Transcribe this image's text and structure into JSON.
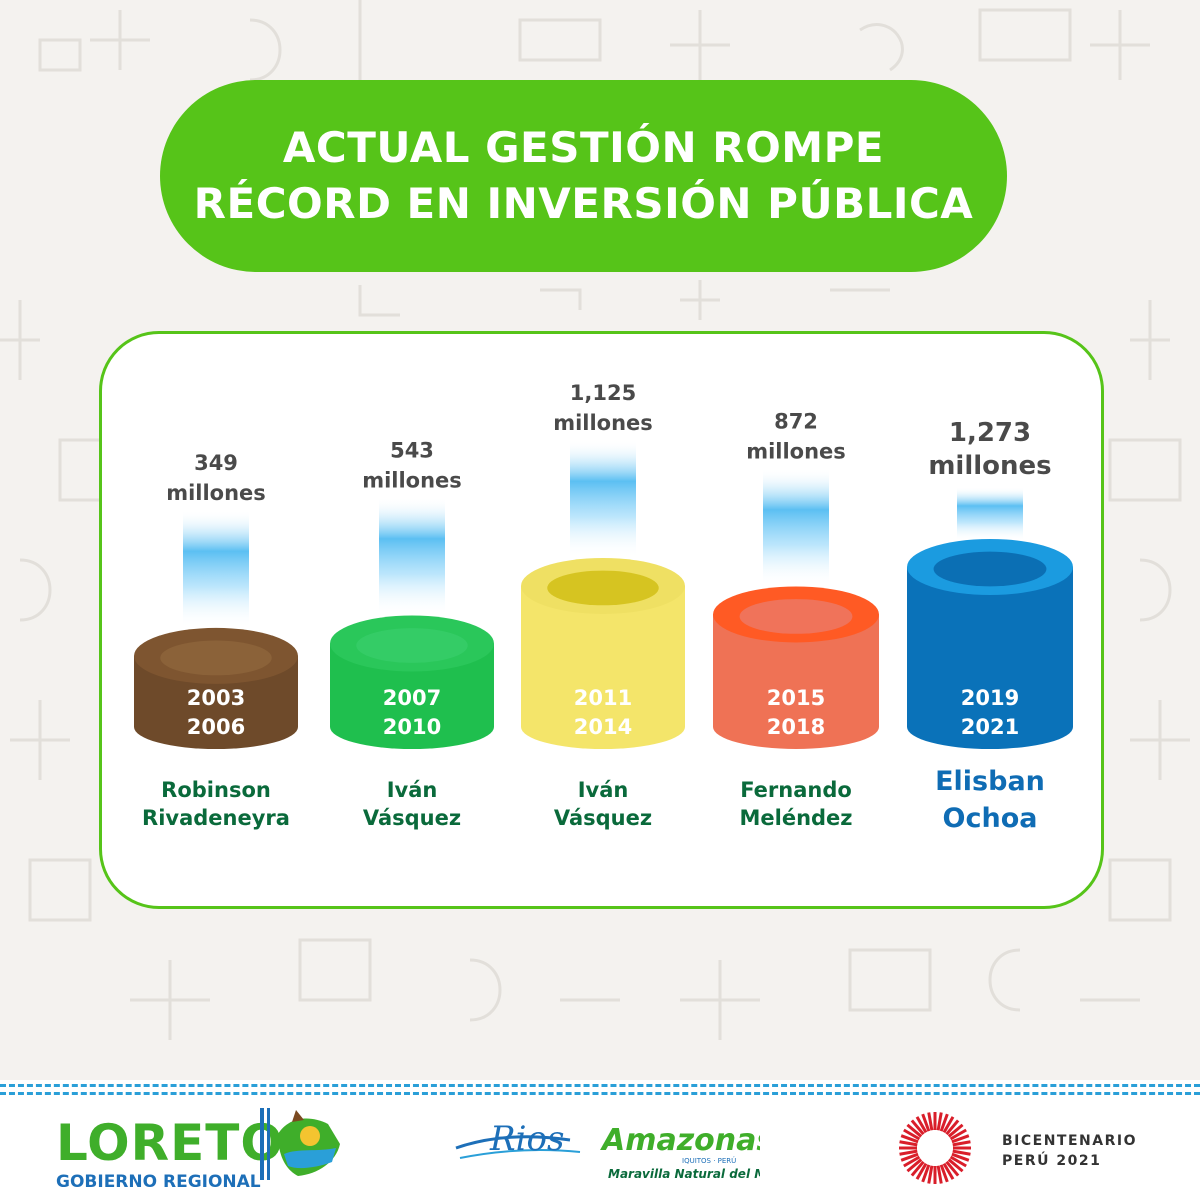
{
  "title": {
    "line1": "ACTUAL GESTIÓN ROMPE",
    "line2": "RÉCORD EN INVERSIÓN PÚBLICA"
  },
  "chart_data": {
    "type": "bar",
    "unit": "millones",
    "categories": [
      "2003 2006",
      "2007 2010",
      "2011 2014",
      "2015 2018",
      "2019 2021"
    ],
    "values": [
      349,
      543,
      1125,
      872,
      1273
    ],
    "bars": [
      {
        "value_label": "349",
        "unit_label": "millones",
        "period_start": "2003",
        "period_end": "2006",
        "name_line1": "Robinson",
        "name_line2": "Rivadeneyra",
        "side_color": "#6e4a2a",
        "top_color": "#7e5530",
        "inner_color": "#8b6239",
        "label_color": "#0a6a3b"
      },
      {
        "value_label": "543",
        "unit_label": "millones",
        "period_start": "2007",
        "period_end": "2010",
        "name_line1": "Iván",
        "name_line2": "Vásquez",
        "side_color": "#1fbf4e",
        "top_color": "#2ac75a",
        "inner_color": "#34cc66",
        "label_color": "#0a6a3b"
      },
      {
        "value_label": "1,125",
        "unit_label": "millones",
        "period_start": "2011",
        "period_end": "2014",
        "name_line1": "Iván",
        "name_line2": "Vásquez",
        "side_color": "#f4e56a",
        "top_color": "#efe063",
        "inner_color": "#d6c421",
        "label_color": "#0a6a3b"
      },
      {
        "value_label": "872",
        "unit_label": "millones",
        "period_start": "2015",
        "period_end": "2018",
        "name_line1": "Fernando",
        "name_line2": "Meléndez",
        "side_color": "#ef7255",
        "top_color": "#ff5a24",
        "inner_color": "#f0735a",
        "label_color": "#0a6a3b"
      },
      {
        "value_label": "1,273",
        "unit_label": "millones",
        "period_start": "2019",
        "period_end": "2021",
        "name_line1": "Elisban",
        "name_line2": "Ochoa",
        "side_color": "#0a72b9",
        "top_color": "#1b9be0",
        "inner_color": "#0b6fb4",
        "label_color": "#0f6cb4",
        "highlight": true
      }
    ]
  },
  "footer": {
    "loreto_word": "LORETO",
    "loreto_sub": "GOBIERNO REGIONAL",
    "rios_script": "Rios",
    "rios_word": "Amazonas",
    "rios_small": "IQUITOS · PERÚ",
    "rios_tag": "Maravilla Natural del Mundo",
    "bicent_line1": "BICENTENARIO",
    "bicent_line2": "PERÚ 2021"
  },
  "colors": {
    "green": "#56c419",
    "blue": "#1d6fb8",
    "value_text": "#4a4a4a"
  }
}
